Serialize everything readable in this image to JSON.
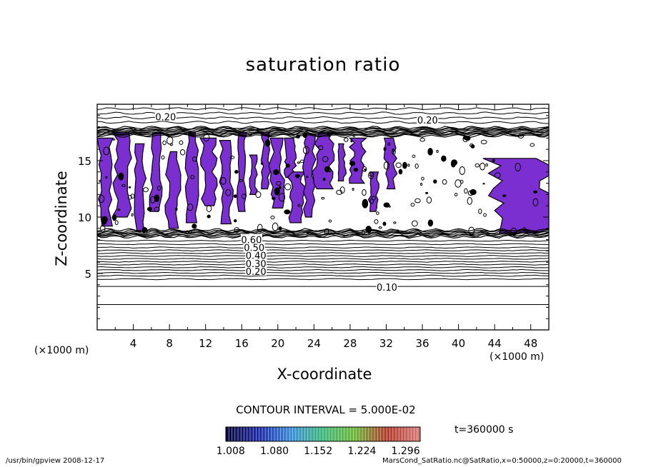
{
  "chart_data": {
    "type": "heatmap",
    "title": "saturation ratio",
    "xlabel": "X-coordinate",
    "ylabel": "Z-coordinate",
    "x_unit": "(×1000 m)",
    "z_unit": "(×1000 m)",
    "xlim": [
      0,
      50
    ],
    "zlim": [
      0,
      20
    ],
    "x_ticks": [
      4,
      8,
      12,
      16,
      20,
      24,
      28,
      32,
      36,
      40,
      44,
      48
    ],
    "z_ticks": [
      5,
      10,
      15
    ],
    "contour_interval_text": "CONTOUR INTERVAL = 5.000E-02",
    "contour_labels": [
      {
        "text": "0.20",
        "x": 7.5,
        "z": 18.9
      },
      {
        "text": "0.20",
        "x": 36.5,
        "z": 18.6
      },
      {
        "text": "0.10",
        "x": 32.0,
        "z": 3.8
      },
      {
        "text": "0.20",
        "x": 17.5,
        "z": 5.2
      },
      {
        "text": "0.30",
        "x": 17.5,
        "z": 5.9
      },
      {
        "text": "0.40",
        "x": 17.5,
        "z": 6.6
      },
      {
        "text": "0.50",
        "x": 17.3,
        "z": 7.3
      },
      {
        "text": "0.60",
        "x": 17.0,
        "z": 8.0
      }
    ],
    "colorbar": {
      "ticks": [
        "1.008",
        "1.080",
        "1.152",
        "1.224",
        "1.296"
      ],
      "range": [
        1.0,
        1.32
      ],
      "colors": [
        "#0a0a3c",
        "#1e2aa8",
        "#3a8ed8",
        "#3fb87a",
        "#6cb83a",
        "#b03a2a",
        "#d87a7a"
      ]
    },
    "fill_color": "#7c2fd0",
    "line_color": "#000000",
    "time_label": "t=360000 s",
    "supersaturated_regions": [
      {
        "x": [
          0.3,
          1.5
        ],
        "z": [
          9.2,
          17.0
        ]
      },
      {
        "x": [
          2.0,
          3.5
        ],
        "z": [
          10.0,
          17.5
        ]
      },
      {
        "x": [
          4.2,
          5.2
        ],
        "z": [
          8.8,
          16.5
        ]
      },
      {
        "x": [
          6.0,
          7.0
        ],
        "z": [
          10.5,
          17.5
        ]
      },
      {
        "x": [
          7.8,
          9.0
        ],
        "z": [
          9.0,
          15.8
        ]
      },
      {
        "x": [
          10.0,
          11.0
        ],
        "z": [
          9.5,
          17.5
        ]
      },
      {
        "x": [
          11.7,
          13.0
        ],
        "z": [
          11.0,
          17.0
        ]
      },
      {
        "x": [
          13.7,
          14.8
        ],
        "z": [
          9.4,
          16.8
        ]
      },
      {
        "x": [
          15.6,
          16.4
        ],
        "z": [
          10.5,
          17.5
        ]
      },
      {
        "x": [
          17.0,
          17.6
        ],
        "z": [
          12.0,
          15.5
        ]
      },
      {
        "x": [
          18.3,
          19.0
        ],
        "z": [
          12.5,
          17.5
        ]
      },
      {
        "x": [
          19.3,
          20.5
        ],
        "z": [
          10.8,
          17.0
        ]
      },
      {
        "x": [
          20.8,
          21.8
        ],
        "z": [
          13.5,
          17.0
        ]
      },
      {
        "x": [
          21.3,
          22.8
        ],
        "z": [
          9.5,
          14.0
        ]
      },
      {
        "x": [
          23.0,
          24.0
        ],
        "z": [
          10.0,
          17.3
        ]
      },
      {
        "x": [
          24.2,
          26.0
        ],
        "z": [
          12.5,
          17.5
        ]
      },
      {
        "x": [
          26.6,
          27.4
        ],
        "z": [
          13.2,
          16.5
        ]
      },
      {
        "x": [
          28.2,
          29.5
        ],
        "z": [
          13.0,
          17.0
        ]
      },
      {
        "x": [
          30.2,
          31.0
        ],
        "z": [
          10.5,
          14.0
        ]
      },
      {
        "x": [
          32.0,
          33.0
        ],
        "z": [
          12.5,
          17.0
        ]
      },
      {
        "x": [
          44.0,
          49.5
        ],
        "z": [
          8.6,
          15.2
        ]
      }
    ]
  },
  "footer": {
    "left": "/usr/bin/gpview   2008-12-17",
    "right": "MarsCond_SatRatio.nc@SatRatio,x=0:50000,z=0:20000,t=360000"
  }
}
